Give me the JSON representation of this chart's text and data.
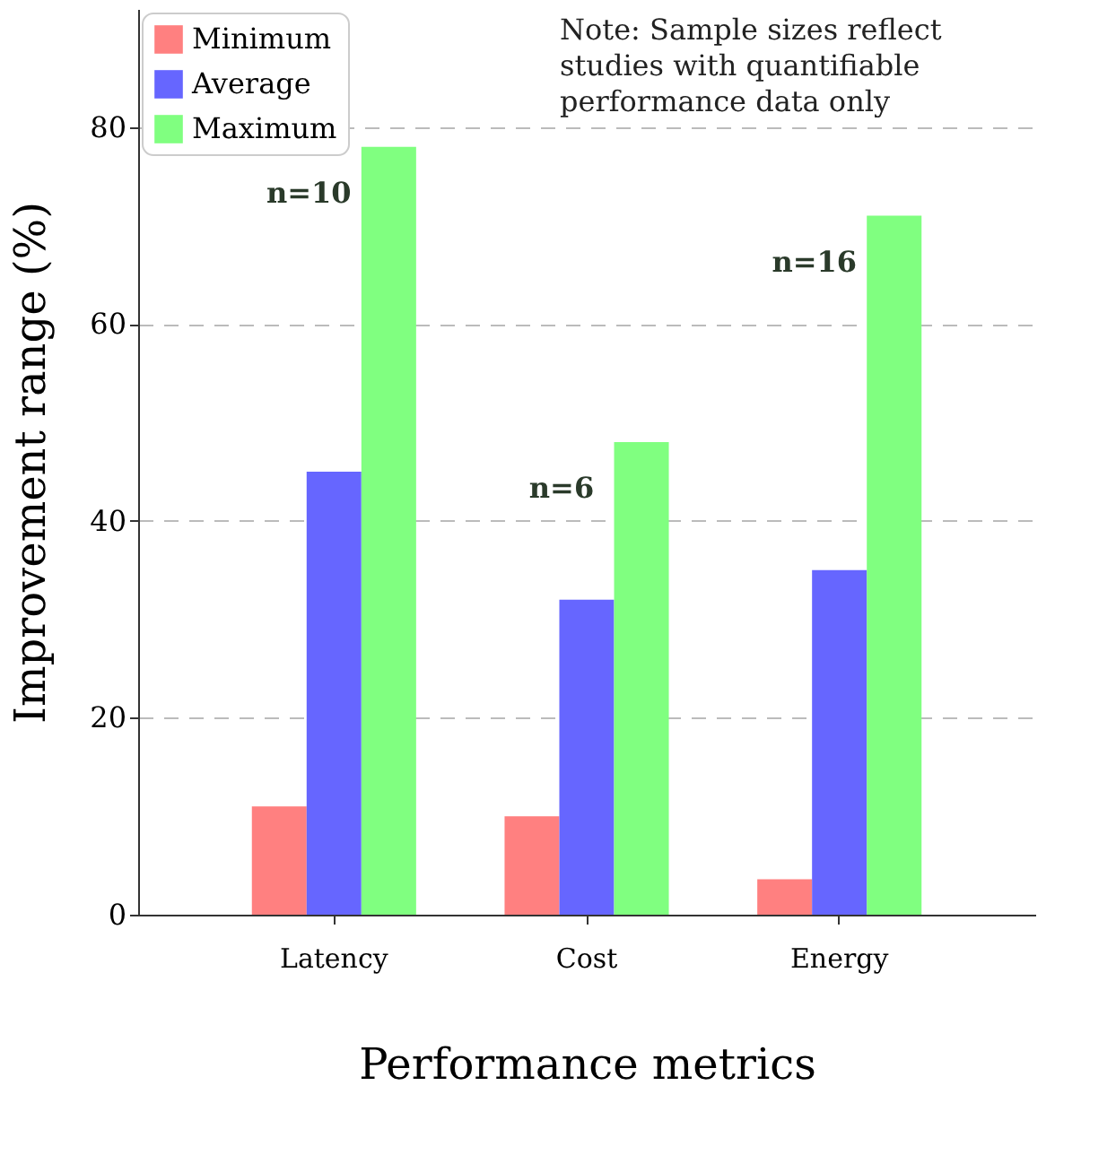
{
  "chart_data": {
    "type": "bar",
    "xlabel": "Performance metrics",
    "ylabel": "Improvement range (%)",
    "categories": [
      "Latency",
      "Cost",
      "Energy"
    ],
    "series": [
      {
        "name": "Minimum",
        "color": "#ff8080",
        "values": [
          11,
          10,
          3.6
        ]
      },
      {
        "name": "Average",
        "color": "#6666ff",
        "values": [
          45,
          32,
          35
        ]
      },
      {
        "name": "Maximum",
        "color": "#80ff80",
        "values": [
          78,
          48,
          71
        ]
      }
    ],
    "ylim": [
      0,
      92
    ],
    "yticks": [
      0,
      20,
      40,
      60,
      80
    ],
    "grid": "y",
    "legend": "top left",
    "annotations": [
      "n=10",
      "n=6",
      "n=16",
      "Note: Sample sizes reflect studies with quantifiable performance data only"
    ]
  }
}
